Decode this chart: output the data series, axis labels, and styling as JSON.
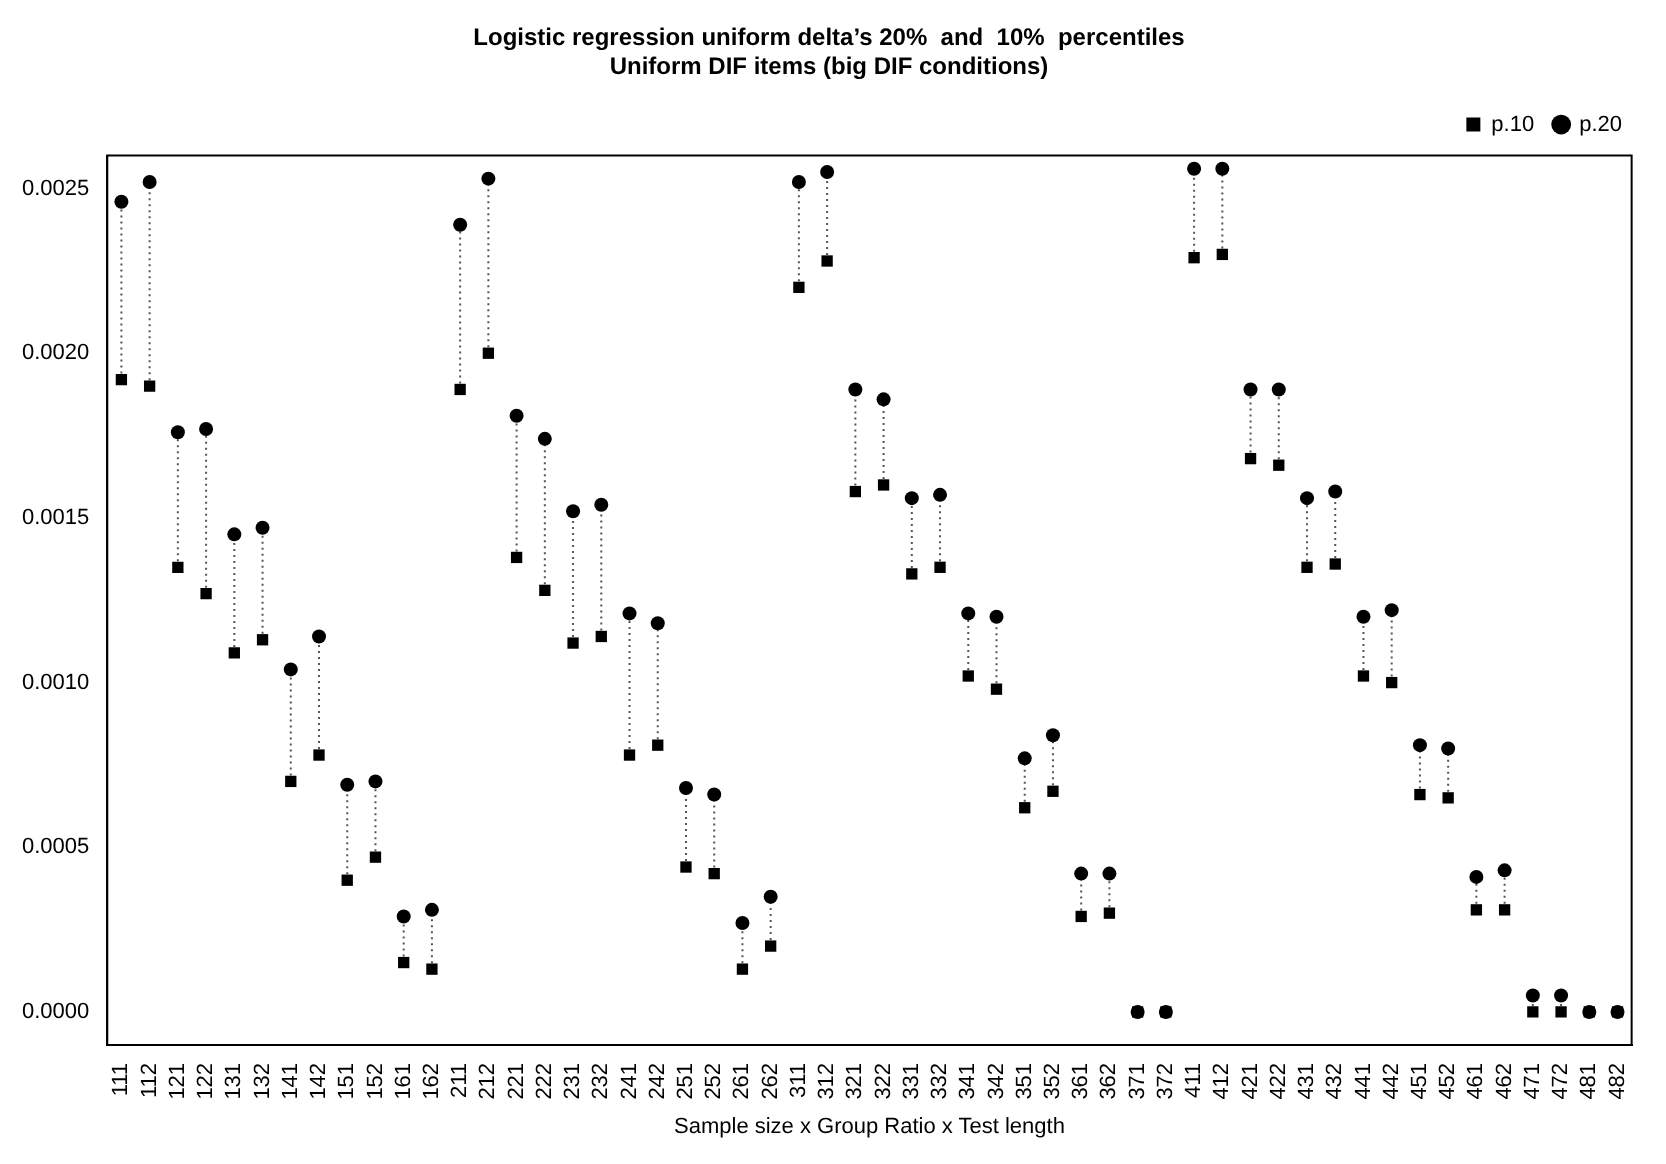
{
  "chart_data": {
    "type": "scatter",
    "title": "Logistic regression uniform delta’s 20%  and  10%  percentiles",
    "subtitle": "Uniform DIF items (big DIF conditions)",
    "xlabel": "Sample size x Group Ratio x Test length",
    "categories": [
      "111",
      "112",
      "121",
      "122",
      "131",
      "132",
      "141",
      "142",
      "151",
      "152",
      "161",
      "162",
      "211",
      "212",
      "221",
      "222",
      "231",
      "232",
      "241",
      "242",
      "251",
      "252",
      "261",
      "262",
      "311",
      "312",
      "321",
      "322",
      "331",
      "332",
      "341",
      "342",
      "351",
      "352",
      "361",
      "362",
      "371",
      "372",
      "411",
      "412",
      "421",
      "422",
      "431",
      "432",
      "441",
      "442",
      "451",
      "452",
      "461",
      "462",
      "471",
      "472",
      "481",
      "482"
    ],
    "series": [
      {
        "name": "p.10",
        "color": "#000000",
        "marker": "square",
        "values": [
          0.00192,
          0.0019,
          0.00135,
          0.00127,
          0.00109,
          0.00113,
          0.0007,
          0.00078,
          0.0004,
          0.00047,
          0.00015,
          0.00013,
          0.00189,
          0.002,
          0.00138,
          0.00128,
          0.00112,
          0.00114,
          0.00078,
          0.00081,
          0.00044,
          0.00042,
          0.00013,
          0.0002,
          0.0022,
          0.00228,
          0.00158,
          0.0016,
          0.00133,
          0.00135,
          0.00102,
          0.00098,
          0.00062,
          0.00067,
          0.00029,
          0.0003,
          0,
          0,
          0.00229,
          0.0023,
          0.00168,
          0.00166,
          0.00135,
          0.00136,
          0.00102,
          0.001,
          0.00066,
          0.00065,
          0.00031,
          0.00031,
          0,
          0,
          0,
          0
        ]
      },
      {
        "name": "p.20",
        "color": "#000000",
        "marker": "circle",
        "values": [
          0.00246,
          0.00252,
          0.00176,
          0.00177,
          0.00145,
          0.00147,
          0.00104,
          0.00114,
          0.00069,
          0.0007,
          0.00029,
          0.00031,
          0.00239,
          0.00253,
          0.00181,
          0.00174,
          0.00152,
          0.00154,
          0.00121,
          0.00118,
          0.00068,
          0.00066,
          0.00027,
          0.00035,
          0.00252,
          0.00255,
          0.00189,
          0.00186,
          0.00156,
          0.00157,
          0.00121,
          0.0012,
          0.00077,
          0.00084,
          0.00042,
          0.00042,
          0,
          0,
          0.00256,
          0.00256,
          0.00189,
          0.00189,
          0.00156,
          0.00158,
          0.0012,
          0.00122,
          0.00081,
          0.0008,
          0.00041,
          0.00043,
          5e-05,
          5e-05,
          0,
          0
        ]
      }
    ],
    "ylim": [
      -0.0001,
      0.0026
    ],
    "yticks": [
      {
        "value": 0,
        "label": "0.0000"
      },
      {
        "value": 0.0005,
        "label": "0.0005"
      },
      {
        "value": 0.001,
        "label": "0.0010"
      },
      {
        "value": 0.0015,
        "label": "0.0015"
      },
      {
        "value": 0.002,
        "label": "0.0020"
      },
      {
        "value": 0.0025,
        "label": "0.0025"
      }
    ],
    "legend": "top right",
    "grid": false
  }
}
